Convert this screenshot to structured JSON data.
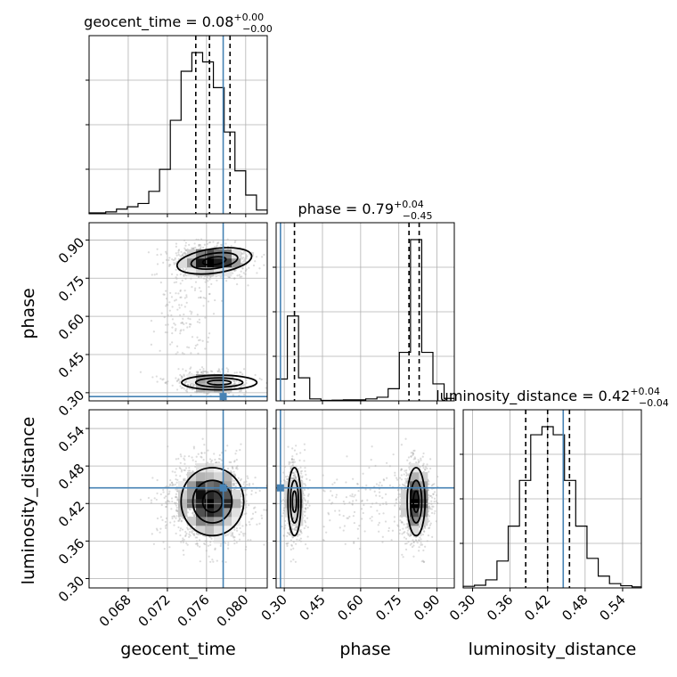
{
  "chart_data": {
    "type": "corner",
    "parameters": [
      "geocent_time",
      "phase",
      "luminosity_distance"
    ],
    "axis_labels": {
      "geocent_time": "geocent_time",
      "phase": "phase",
      "luminosity_distance": "luminosity_distance"
    },
    "titles": {
      "geocent_time": {
        "text": "geocent_time = 0.08",
        "plus": "+0.00",
        "minus": "−0.00"
      },
      "phase": {
        "text": "phase = 0.79",
        "plus": "+0.04",
        "minus": "−0.45"
      },
      "luminosity_distance": {
        "text": "luminosity_distance = 0.42",
        "plus": "+0.04",
        "minus": "−0.04"
      }
    },
    "ranges": {
      "geocent_time": [
        0.064,
        0.0822
      ],
      "phase": [
        0.268,
        0.968
      ],
      "luminosity_distance": [
        0.285,
        0.57
      ]
    },
    "ticks": {
      "geocent_time": [
        "0.068",
        "0.072",
        "0.076",
        "0.080"
      ],
      "phase": [
        "0.30",
        "0.45",
        "0.60",
        "0.75",
        "0.90"
      ],
      "luminosity_distance": [
        "0.30",
        "0.36",
        "0.42",
        "0.48",
        "0.54"
      ]
    },
    "truths": {
      "geocent_time": 0.0777,
      "phase": 0.285,
      "luminosity_distance": 0.445
    },
    "quantiles": {
      "geocent_time": [
        0.0749,
        0.0763,
        0.0784
      ],
      "phase": [
        0.34,
        0.79,
        0.83
      ],
      "luminosity_distance": [
        0.385,
        0.42,
        0.455
      ]
    },
    "histograms": {
      "geocent_time": {
        "edges": [
          0.064,
          0.0657,
          0.0668,
          0.0679,
          0.069,
          0.0701,
          0.0712,
          0.0723,
          0.0734,
          0.0745,
          0.0756,
          0.0767,
          0.0778,
          0.0789,
          0.08,
          0.0811,
          0.0822
        ],
        "counts": [
          2,
          4,
          10,
          15,
          22,
          48,
          95,
          200,
          305,
          345,
          325,
          270,
          175,
          92,
          40,
          8
        ]
      },
      "phase": {
        "edges": [
          0.268,
          0.312,
          0.356,
          0.4,
          0.444,
          0.488,
          0.532,
          0.576,
          0.62,
          0.664,
          0.708,
          0.752,
          0.796,
          0.84,
          0.884,
          0.928,
          0.968
        ],
        "counts": [
          90,
          350,
          95,
          8,
          2,
          3,
          4,
          4,
          8,
          15,
          50,
          200,
          665,
          200,
          70,
          10
        ]
      },
      "luminosity_distance": {
        "edges": [
          0.285,
          0.303,
          0.321,
          0.339,
          0.357,
          0.375,
          0.393,
          0.411,
          0.429,
          0.447,
          0.465,
          0.483,
          0.501,
          0.519,
          0.537,
          0.555,
          0.57
        ],
        "counts": [
          3,
          5,
          15,
          50,
          115,
          200,
          285,
          300,
          285,
          200,
          115,
          55,
          22,
          8,
          4,
          2
        ]
      }
    }
  }
}
